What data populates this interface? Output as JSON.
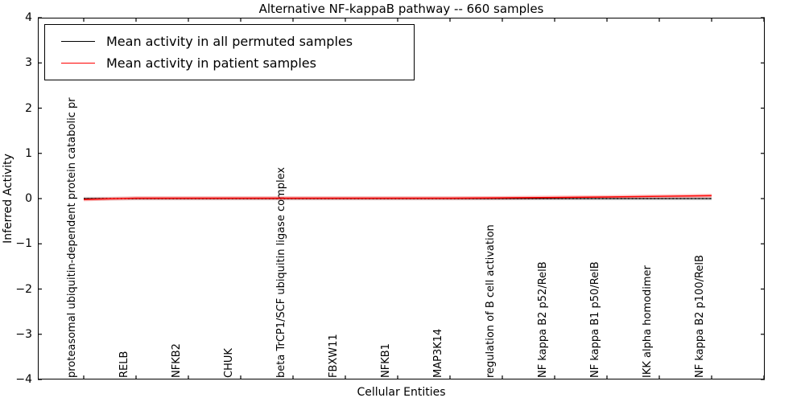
{
  "figure": {
    "background": "#ffffff",
    "frame_color": "#000000"
  },
  "chart_data": {
    "type": "line",
    "title": "Alternative NF-kappaB pathway -- 660 samples",
    "xlabel": "Cellular Entities",
    "ylabel": "Inferred Activity",
    "ylim": [
      -4,
      4
    ],
    "yticks": [
      4,
      3,
      2,
      1,
      0,
      -1,
      -2,
      -3,
      -4
    ],
    "ytick_labels": [
      "4",
      "3",
      "2",
      "1",
      "0",
      "−1",
      "−2",
      "−3",
      "−4"
    ],
    "grid": false,
    "legend_position": "upper left",
    "categories": [
      "proteasomal ubiquitin-dependent protein catabolic pr",
      "RELB",
      "NFKB2",
      "CHUK",
      "beta TrCP1/SCF ubiquitin ligase complex",
      "FBXW11",
      "NFKB1",
      "MAP3K14",
      "regulation of B cell activation",
      "NF kappa B2 p52/RelB",
      "NF kappa B1 p50/RelB",
      "IKK alpha homodimer",
      "NF kappa B2 p100/RelB"
    ],
    "series": [
      {
        "name": "Mean activity in all permuted samples",
        "color": "#000000",
        "band_color": "rgba(0,0,0,0.13)",
        "values": [
          0,
          0,
          0,
          0,
          0,
          0,
          0,
          0,
          0,
          0,
          0,
          0,
          0
        ]
      },
      {
        "name": "Mean activity in patient samples",
        "color": "#ff0000",
        "band_color": "rgba(255,60,60,0.30)",
        "values": [
          -0.02,
          0.01,
          0.01,
          0.01,
          0.01,
          0.01,
          0.01,
          0.01,
          0.015,
          0.025,
          0.035,
          0.05,
          0.065
        ]
      }
    ]
  }
}
